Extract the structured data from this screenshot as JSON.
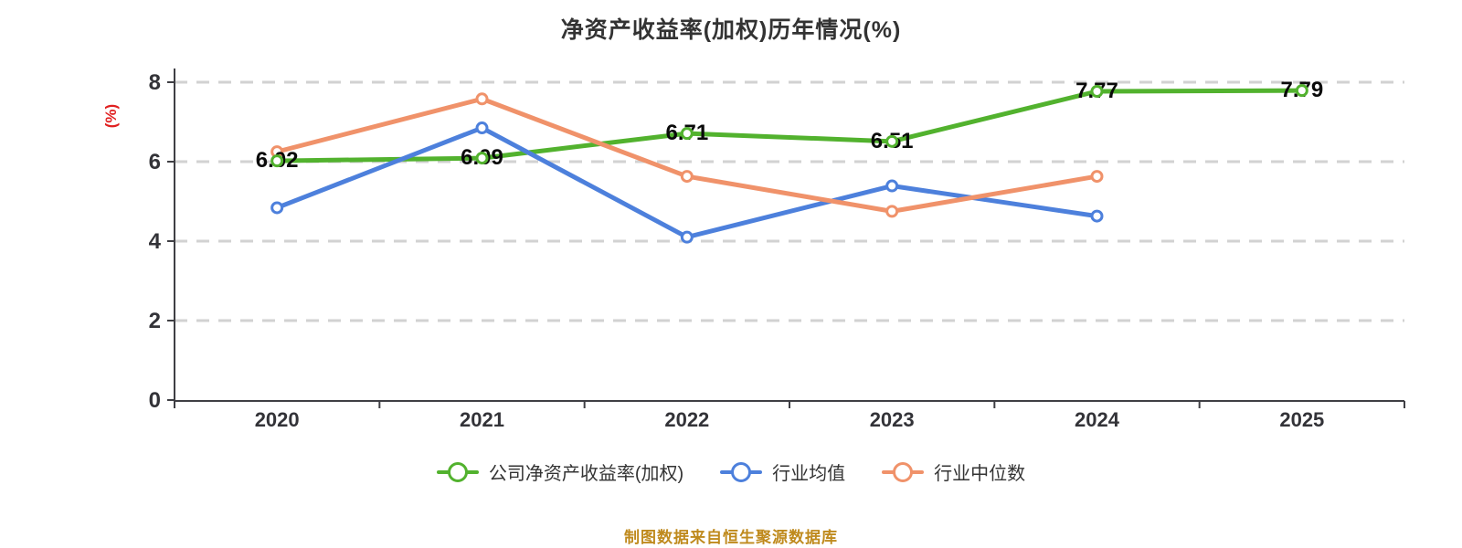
{
  "chart_data": {
    "type": "line",
    "title": "净资产收益率(加权)历年情况(%)",
    "y_axis_label": "(%)",
    "categories": [
      "2020",
      "2021",
      "2022",
      "2023",
      "2024",
      "2025"
    ],
    "series": [
      {
        "key": "company_roe",
        "name": "公司净资产收益率(加权)",
        "color": "#52b22e",
        "values": [
          6.02,
          6.09,
          6.71,
          6.51,
          7.77,
          7.79
        ],
        "data_labels": [
          "6.02",
          "6.09",
          "6.71",
          "6.51",
          "7.77",
          "7.79"
        ]
      },
      {
        "key": "industry_mean",
        "name": "行业均值",
        "color": "#4d80dc",
        "values": [
          4.84,
          6.85,
          4.1,
          5.39,
          4.63,
          null
        ],
        "data_labels": null
      },
      {
        "key": "industry_median",
        "name": "行业中位数",
        "color": "#f0926a",
        "values": [
          6.25,
          7.58,
          5.63,
          4.75,
          5.63,
          null
        ],
        "data_labels": null
      }
    ],
    "ylim": [
      0,
      8
    ],
    "yticks": [
      0,
      2,
      4,
      6,
      8
    ],
    "grid": {
      "horizontal_dashed": true,
      "color": "#d2d2d2"
    },
    "legend_position": "bottom",
    "marker_style": "white-filled circle with colored ring"
  },
  "colors": {
    "title": "#333333",
    "axis": "#3f3f44",
    "tick_label": "#333338",
    "y_axis_label": "#e02020",
    "data_label": "#0a0a0a",
    "note": "#bf8a1d",
    "background": "#ffffff"
  },
  "source_note": "制图数据来自恒生聚源数据库"
}
